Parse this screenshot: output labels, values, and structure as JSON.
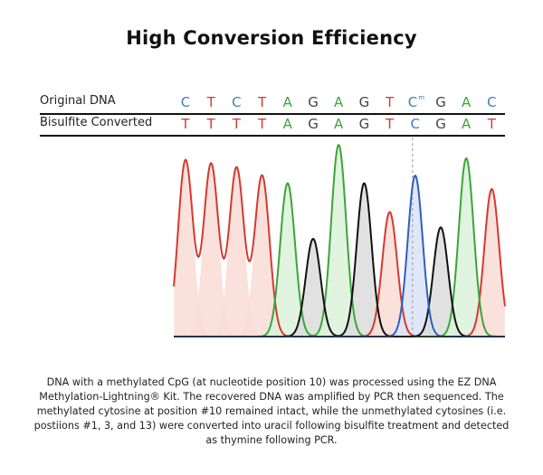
{
  "title": "High Conversion Efficiency",
  "rows": {
    "original_label": "Original DNA",
    "converted_label": "Bisulfite Converted"
  },
  "sequences": {
    "original": [
      {
        "base": "C",
        "color": "#3a7ec2"
      },
      {
        "base": "T",
        "color": "#d43a2f"
      },
      {
        "base": "C",
        "color": "#3a7ec2"
      },
      {
        "base": "T",
        "color": "#d43a2f"
      },
      {
        "base": "A",
        "color": "#3aa63a"
      },
      {
        "base": "G",
        "color": "#444444"
      },
      {
        "base": "A",
        "color": "#3aa63a"
      },
      {
        "base": "G",
        "color": "#444444"
      },
      {
        "base": "T",
        "color": "#d43a2f"
      },
      {
        "base": "C",
        "color": "#3a7ec2",
        "superscript": "m"
      },
      {
        "base": "G",
        "color": "#444444"
      },
      {
        "base": "A",
        "color": "#3aa63a"
      },
      {
        "base": "C",
        "color": "#3a7ec2"
      }
    ],
    "converted": [
      {
        "base": "T",
        "color": "#d43a2f"
      },
      {
        "base": "T",
        "color": "#d43a2f"
      },
      {
        "base": "T",
        "color": "#d43a2f"
      },
      {
        "base": "T",
        "color": "#d43a2f"
      },
      {
        "base": "A",
        "color": "#3aa63a"
      },
      {
        "base": "G",
        "color": "#444444"
      },
      {
        "base": "A",
        "color": "#3aa63a"
      },
      {
        "base": "G",
        "color": "#444444"
      },
      {
        "base": "T",
        "color": "#d43a2f"
      },
      {
        "base": "C",
        "color": "#3a7ec2"
      },
      {
        "base": "G",
        "color": "#444444"
      },
      {
        "base": "A",
        "color": "#3aa63a"
      },
      {
        "base": "T",
        "color": "#d43a2f"
      }
    ]
  },
  "chart_data": {
    "type": "line",
    "title": "",
    "xlabel": "",
    "ylabel": "",
    "grid": false,
    "legend": "none",
    "ylim": [
      0,
      1
    ],
    "colors": {
      "T": "#d43a2f",
      "A": "#3aa63a",
      "G": "#111111",
      "C": "#2f5fc4"
    },
    "fill_colors": {
      "T": "#f9dcd6",
      "A": "#daf2d9",
      "G": "#dcdcdc",
      "C": "#d9e3f7"
    },
    "peaks": [
      {
        "base": "T",
        "x": 1,
        "height": 0.92
      },
      {
        "base": "T",
        "x": 2,
        "height": 0.9
      },
      {
        "base": "T",
        "x": 3,
        "height": 0.88
      },
      {
        "base": "T",
        "x": 4,
        "height": 0.84
      },
      {
        "base": "A",
        "x": 5,
        "height": 0.8
      },
      {
        "base": "G",
        "x": 6,
        "height": 0.51
      },
      {
        "base": "A",
        "x": 7,
        "height": 1.0
      },
      {
        "base": "G",
        "x": 8,
        "height": 0.8
      },
      {
        "base": "T",
        "x": 9,
        "height": 0.65
      },
      {
        "base": "C",
        "x": 10,
        "height": 0.84
      },
      {
        "base": "G",
        "x": 11,
        "height": 0.57
      },
      {
        "base": "A",
        "x": 12,
        "height": 0.93
      },
      {
        "base": "T",
        "x": 13,
        "height": 0.77
      }
    ],
    "marker_position": 10
  },
  "caption": "DNA with a methylated CpG (at nucleotide position 10) was processed using the EZ DNA Methylation-Lightning® Kit. The recovered DNA was amplified by PCR then sequenced. The methylated cytosine at position #10 remained intact, while the unmethylated cytosines (i.e. postiions #1, 3, and 13) were converted into uracil following bisulfite treatment and detected as thymine following PCR."
}
